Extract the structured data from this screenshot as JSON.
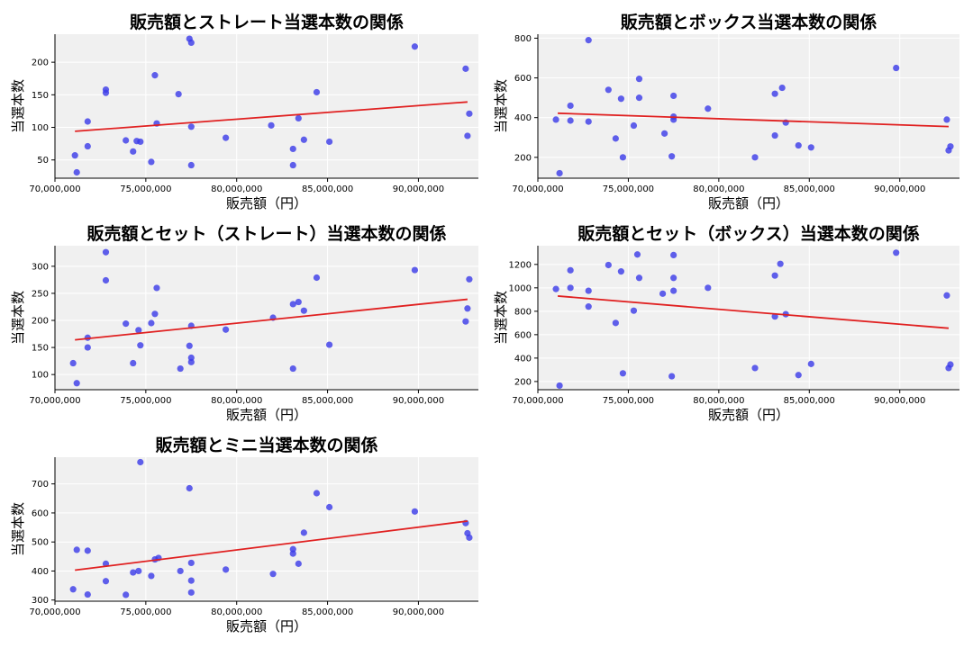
{
  "style": {
    "background": "#f0f0f0",
    "grid_color": "#ffffff",
    "point_color": "#3a3ae8",
    "trend_color": "#e02020"
  },
  "chart_data": [
    {
      "type": "scatter",
      "title": "販売額とストレート当選本数の関係",
      "xlabel": "販売額（円）",
      "ylabel": "当選本数",
      "xlim": [
        70000000,
        93300000
      ],
      "ylim": [
        22,
        243
      ],
      "xticks": [
        70000000,
        75000000,
        80000000,
        85000000,
        90000000
      ],
      "xtick_labels": [
        "70,000,000",
        "75,000,000",
        "80,000,000",
        "85,000,000",
        "90,000,000"
      ],
      "yticks": [
        50,
        100,
        150,
        200
      ],
      "ytick_labels": [
        "50",
        "100",
        "150",
        "200"
      ],
      "grid": true,
      "trend": {
        "x": [
          71100000,
          92700000
        ],
        "y": [
          94,
          139
        ]
      },
      "points": [
        {
          "x": 71100000,
          "y": 57
        },
        {
          "x": 71200000,
          "y": 31
        },
        {
          "x": 71800000,
          "y": 71
        },
        {
          "x": 71800000,
          "y": 109
        },
        {
          "x": 72800000,
          "y": 153
        },
        {
          "x": 72800000,
          "y": 158
        },
        {
          "x": 73900000,
          "y": 80
        },
        {
          "x": 74300000,
          "y": 63
        },
        {
          "x": 74500000,
          "y": 79
        },
        {
          "x": 74700000,
          "y": 78
        },
        {
          "x": 75300000,
          "y": 47
        },
        {
          "x": 75500000,
          "y": 180
        },
        {
          "x": 75600000,
          "y": 106
        },
        {
          "x": 76800000,
          "y": 151
        },
        {
          "x": 77400000,
          "y": 236
        },
        {
          "x": 77500000,
          "y": 230
        },
        {
          "x": 77500000,
          "y": 42
        },
        {
          "x": 77500000,
          "y": 101
        },
        {
          "x": 79400000,
          "y": 84
        },
        {
          "x": 81900000,
          "y": 103
        },
        {
          "x": 83100000,
          "y": 67
        },
        {
          "x": 83100000,
          "y": 42
        },
        {
          "x": 83400000,
          "y": 114
        },
        {
          "x": 83700000,
          "y": 81
        },
        {
          "x": 84400000,
          "y": 154
        },
        {
          "x": 85100000,
          "y": 78
        },
        {
          "x": 89800000,
          "y": 224
        },
        {
          "x": 92600000,
          "y": 190
        },
        {
          "x": 92700000,
          "y": 87
        },
        {
          "x": 92800000,
          "y": 121
        }
      ]
    },
    {
      "type": "scatter",
      "title": "販売額とボックス当選本数の関係",
      "xlabel": "販売額（円）",
      "ylabel": "当選本数",
      "xlim": [
        70000000,
        93300000
      ],
      "ylim": [
        95,
        820
      ],
      "xticks": [
        70000000,
        75000000,
        80000000,
        85000000,
        90000000
      ],
      "xtick_labels": [
        "70,000,000",
        "75,000,000",
        "80,000,000",
        "85,000,000",
        "90,000,000"
      ],
      "yticks": [
        200,
        400,
        600,
        800
      ],
      "ytick_labels": [
        "200",
        "400",
        "600",
        "800"
      ],
      "grid": true,
      "trend": {
        "x": [
          71100000,
          92700000
        ],
        "y": [
          422,
          355
        ]
      },
      "points": [
        {
          "x": 71000000,
          "y": 390
        },
        {
          "x": 71200000,
          "y": 120
        },
        {
          "x": 71800000,
          "y": 385
        },
        {
          "x": 71800000,
          "y": 460
        },
        {
          "x": 72800000,
          "y": 790
        },
        {
          "x": 72800000,
          "y": 380
        },
        {
          "x": 73900000,
          "y": 540
        },
        {
          "x": 74300000,
          "y": 295
        },
        {
          "x": 74600000,
          "y": 495
        },
        {
          "x": 74700000,
          "y": 200
        },
        {
          "x": 75300000,
          "y": 360
        },
        {
          "x": 75600000,
          "y": 595
        },
        {
          "x": 75600000,
          "y": 500
        },
        {
          "x": 77000000,
          "y": 320
        },
        {
          "x": 77400000,
          "y": 205
        },
        {
          "x": 77500000,
          "y": 510
        },
        {
          "x": 77500000,
          "y": 405
        },
        {
          "x": 77500000,
          "y": 390
        },
        {
          "x": 79400000,
          "y": 445
        },
        {
          "x": 82000000,
          "y": 200
        },
        {
          "x": 83100000,
          "y": 520
        },
        {
          "x": 83100000,
          "y": 310
        },
        {
          "x": 83500000,
          "y": 550
        },
        {
          "x": 83700000,
          "y": 375
        },
        {
          "x": 84400000,
          "y": 260
        },
        {
          "x": 85100000,
          "y": 250
        },
        {
          "x": 89800000,
          "y": 650
        },
        {
          "x": 92600000,
          "y": 390
        },
        {
          "x": 92700000,
          "y": 235
        },
        {
          "x": 92800000,
          "y": 255
        }
      ]
    },
    {
      "type": "scatter",
      "title": "販売額とセット（ストレート）当選本数の関係",
      "xlabel": "販売額（円）",
      "ylabel": "当選本数",
      "xlim": [
        70000000,
        93300000
      ],
      "ylim": [
        72,
        338
      ],
      "xticks": [
        70000000,
        75000000,
        80000000,
        85000000,
        90000000
      ],
      "xtick_labels": [
        "70,000,000",
        "75,000,000",
        "80,000,000",
        "85,000,000",
        "90,000,000"
      ],
      "yticks": [
        100,
        150,
        200,
        250,
        300
      ],
      "ytick_labels": [
        "100",
        "150",
        "200",
        "250",
        "300"
      ],
      "grid": true,
      "trend": {
        "x": [
          71100000,
          92700000
        ],
        "y": [
          164,
          239
        ]
      },
      "points": [
        {
          "x": 71000000,
          "y": 121
        },
        {
          "x": 71200000,
          "y": 84
        },
        {
          "x": 71800000,
          "y": 168
        },
        {
          "x": 71800000,
          "y": 150
        },
        {
          "x": 72800000,
          "y": 326
        },
        {
          "x": 72800000,
          "y": 274
        },
        {
          "x": 73900000,
          "y": 194
        },
        {
          "x": 74300000,
          "y": 121
        },
        {
          "x": 74600000,
          "y": 182
        },
        {
          "x": 74700000,
          "y": 154
        },
        {
          "x": 75300000,
          "y": 195
        },
        {
          "x": 75500000,
          "y": 212
        },
        {
          "x": 75600000,
          "y": 260
        },
        {
          "x": 76900000,
          "y": 111
        },
        {
          "x": 77400000,
          "y": 153
        },
        {
          "x": 77500000,
          "y": 190
        },
        {
          "x": 77500000,
          "y": 131
        },
        {
          "x": 77500000,
          "y": 123
        },
        {
          "x": 79400000,
          "y": 183
        },
        {
          "x": 82000000,
          "y": 205
        },
        {
          "x": 83100000,
          "y": 230
        },
        {
          "x": 83100000,
          "y": 111
        },
        {
          "x": 83400000,
          "y": 234
        },
        {
          "x": 83700000,
          "y": 218
        },
        {
          "x": 84400000,
          "y": 279
        },
        {
          "x": 85100000,
          "y": 155
        },
        {
          "x": 89800000,
          "y": 293
        },
        {
          "x": 92600000,
          "y": 198
        },
        {
          "x": 92700000,
          "y": 222
        },
        {
          "x": 92800000,
          "y": 276
        }
      ]
    },
    {
      "type": "scatter",
      "title": "販売額とセット（ボックス）当選本数の関係",
      "xlabel": "販売額（円）",
      "ylabel": "当選本数",
      "xlim": [
        70000000,
        93300000
      ],
      "ylim": [
        130,
        1360
      ],
      "xticks": [
        70000000,
        75000000,
        80000000,
        85000000,
        90000000
      ],
      "xtick_labels": [
        "70,000,000",
        "75,000,000",
        "80,000,000",
        "85,000,000",
        "90,000,000"
      ],
      "yticks": [
        200,
        400,
        600,
        800,
        1000,
        1200
      ],
      "ytick_labels": [
        "200",
        "400",
        "600",
        "800",
        "1000",
        "1200"
      ],
      "grid": true,
      "trend": {
        "x": [
          71100000,
          92700000
        ],
        "y": [
          930,
          655
        ]
      },
      "points": [
        {
          "x": 71000000,
          "y": 990
        },
        {
          "x": 71200000,
          "y": 165
        },
        {
          "x": 71800000,
          "y": 1000
        },
        {
          "x": 71800000,
          "y": 1150
        },
        {
          "x": 72800000,
          "y": 975
        },
        {
          "x": 72800000,
          "y": 840
        },
        {
          "x": 73900000,
          "y": 1195
        },
        {
          "x": 74300000,
          "y": 700
        },
        {
          "x": 74600000,
          "y": 1140
        },
        {
          "x": 74700000,
          "y": 270
        },
        {
          "x": 75300000,
          "y": 805
        },
        {
          "x": 75500000,
          "y": 1285
        },
        {
          "x": 75600000,
          "y": 1085
        },
        {
          "x": 76900000,
          "y": 950
        },
        {
          "x": 77400000,
          "y": 245
        },
        {
          "x": 77500000,
          "y": 1280
        },
        {
          "x": 77500000,
          "y": 1085
        },
        {
          "x": 77500000,
          "y": 975
        },
        {
          "x": 79400000,
          "y": 1000
        },
        {
          "x": 82000000,
          "y": 315
        },
        {
          "x": 83100000,
          "y": 1105
        },
        {
          "x": 83100000,
          "y": 755
        },
        {
          "x": 83400000,
          "y": 1205
        },
        {
          "x": 83700000,
          "y": 775
        },
        {
          "x": 84400000,
          "y": 255
        },
        {
          "x": 85100000,
          "y": 350
        },
        {
          "x": 89800000,
          "y": 1300
        },
        {
          "x": 92600000,
          "y": 935
        },
        {
          "x": 92700000,
          "y": 315
        },
        {
          "x": 92800000,
          "y": 345
        }
      ]
    },
    {
      "type": "scatter",
      "title": "販売額とミニ当選本数の関係",
      "xlabel": "販売額（円）",
      "ylabel": "当選本数",
      "xlim": [
        70000000,
        93300000
      ],
      "ylim": [
        296,
        792
      ],
      "xticks": [
        70000000,
        75000000,
        80000000,
        85000000,
        90000000
      ],
      "xtick_labels": [
        "70,000,000",
        "75,000,000",
        "80,000,000",
        "85,000,000",
        "90,000,000"
      ],
      "yticks": [
        300,
        400,
        500,
        600,
        700
      ],
      "ytick_labels": [
        "300",
        "400",
        "500",
        "600",
        "700"
      ],
      "grid": true,
      "trend": {
        "x": [
          71100000,
          92700000
        ],
        "y": [
          403,
          572
        ]
      },
      "points": [
        {
          "x": 71000000,
          "y": 337
        },
        {
          "x": 71200000,
          "y": 473
        },
        {
          "x": 71800000,
          "y": 319
        },
        {
          "x": 71800000,
          "y": 470
        },
        {
          "x": 72800000,
          "y": 365
        },
        {
          "x": 72800000,
          "y": 425
        },
        {
          "x": 73900000,
          "y": 318
        },
        {
          "x": 74300000,
          "y": 395
        },
        {
          "x": 74600000,
          "y": 400
        },
        {
          "x": 74700000,
          "y": 775
        },
        {
          "x": 75300000,
          "y": 383
        },
        {
          "x": 75500000,
          "y": 440
        },
        {
          "x": 75700000,
          "y": 445
        },
        {
          "x": 76900000,
          "y": 400
        },
        {
          "x": 77400000,
          "y": 685
        },
        {
          "x": 77500000,
          "y": 428
        },
        {
          "x": 77500000,
          "y": 367
        },
        {
          "x": 77500000,
          "y": 326
        },
        {
          "x": 79400000,
          "y": 405
        },
        {
          "x": 82000000,
          "y": 390
        },
        {
          "x": 83100000,
          "y": 475
        },
        {
          "x": 83100000,
          "y": 460
        },
        {
          "x": 83400000,
          "y": 425
        },
        {
          "x": 83700000,
          "y": 532
        },
        {
          "x": 84400000,
          "y": 668
        },
        {
          "x": 85100000,
          "y": 620
        },
        {
          "x": 89800000,
          "y": 605
        },
        {
          "x": 92600000,
          "y": 565
        },
        {
          "x": 92700000,
          "y": 530
        },
        {
          "x": 92800000,
          "y": 515
        }
      ]
    }
  ]
}
